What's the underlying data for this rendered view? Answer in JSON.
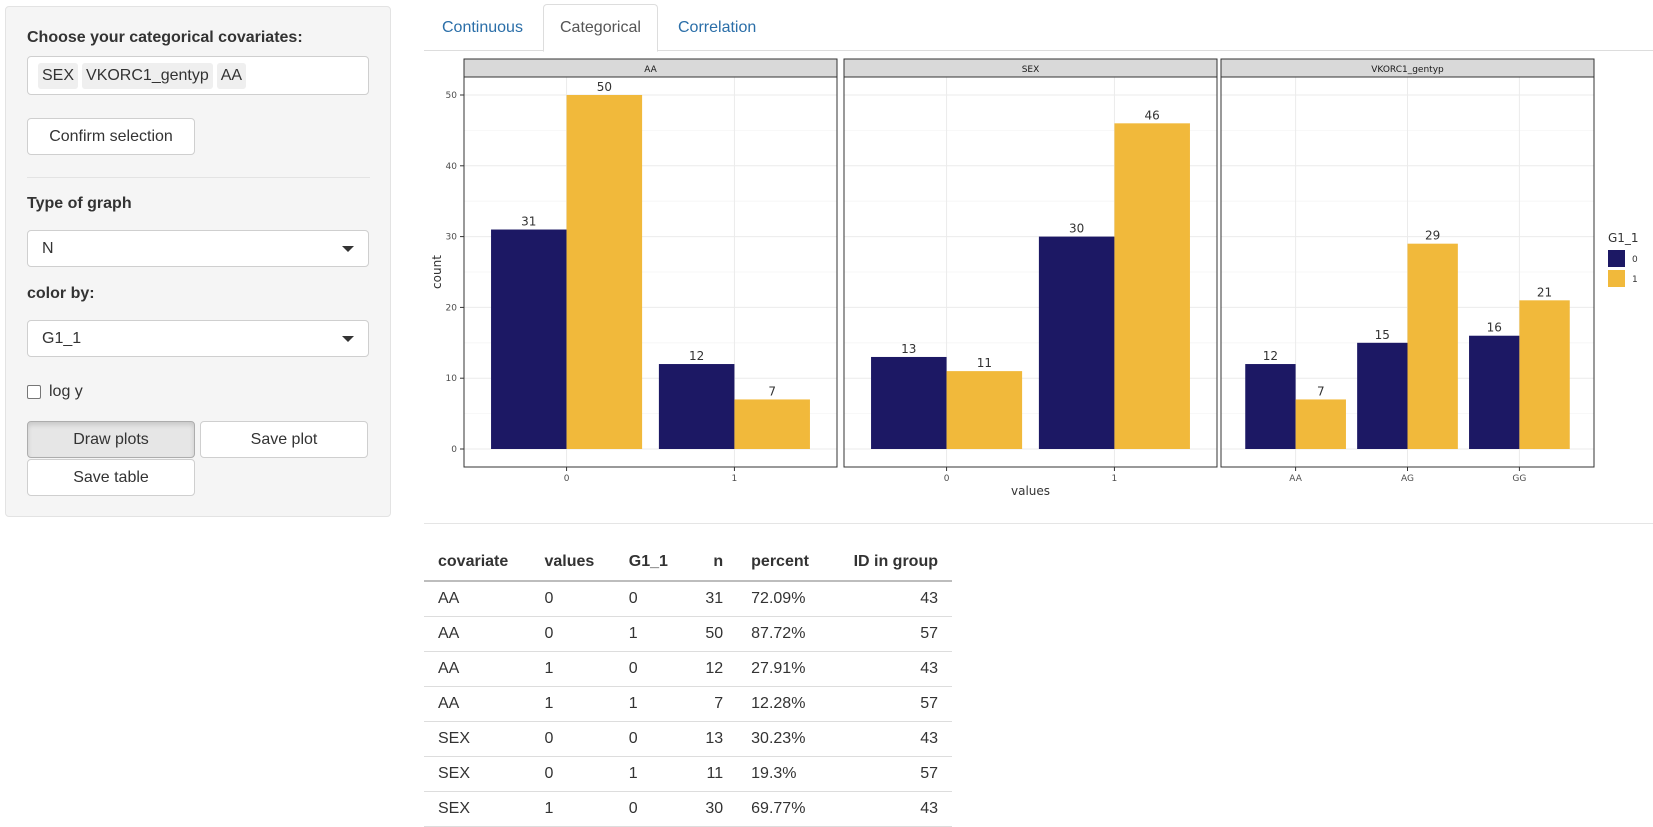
{
  "sidebar": {
    "covariates_label": "Choose your categorical covariates:",
    "selected": [
      "SEX",
      "VKORC1_gentyp",
      "AA"
    ],
    "confirm_button": "Confirm selection",
    "graph_type_label": "Type of graph",
    "graph_type_value": "N",
    "color_by_label": "color by:",
    "color_by_value": "G1_1",
    "log_y_label": "log y",
    "log_y_checked": false,
    "draw_button": "Draw plots",
    "save_plot_button": "Save plot",
    "save_table_button": "Save table"
  },
  "tabs": [
    {
      "label": "Continuous",
      "active": false
    },
    {
      "label": "Categorical",
      "active": true
    },
    {
      "label": "Correlation",
      "active": false
    }
  ],
  "chart_data": {
    "type": "bar",
    "xlabel": "values",
    "ylabel": "count",
    "ylim": [
      0,
      50
    ],
    "yticks": [
      0,
      10,
      20,
      30,
      40,
      50
    ],
    "legend": {
      "title": "G1_1",
      "position": "right"
    },
    "series_colors": {
      "0": "#1c1864",
      "1": "#f1b93b"
    },
    "series_names": [
      "0",
      "1"
    ],
    "facets": [
      {
        "title": "AA",
        "categories": [
          "0",
          "1"
        ],
        "series": [
          {
            "name": "0",
            "values": [
              31,
              12
            ]
          },
          {
            "name": "1",
            "values": [
              50,
              7
            ]
          }
        ]
      },
      {
        "title": "SEX",
        "categories": [
          "0",
          "1"
        ],
        "series": [
          {
            "name": "0",
            "values": [
              13,
              30
            ]
          },
          {
            "name": "1",
            "values": [
              11,
              46
            ]
          }
        ]
      },
      {
        "title": "VKORC1_gentyp",
        "categories": [
          "AA",
          "AG",
          "GG"
        ],
        "series": [
          {
            "name": "0",
            "values": [
              12,
              15,
              16
            ]
          },
          {
            "name": "1",
            "values": [
              7,
              29,
              21
            ]
          }
        ]
      }
    ]
  },
  "table": {
    "headers": [
      "covariate",
      "values",
      "G1_1",
      "n",
      "percent",
      "ID in group"
    ],
    "rows": [
      [
        "AA",
        "0",
        "0",
        "31",
        "72.09%",
        "43"
      ],
      [
        "AA",
        "0",
        "1",
        "50",
        "87.72%",
        "57"
      ],
      [
        "AA",
        "1",
        "0",
        "12",
        "27.91%",
        "43"
      ],
      [
        "AA",
        "1",
        "1",
        "7",
        "12.28%",
        "57"
      ],
      [
        "SEX",
        "0",
        "0",
        "13",
        "30.23%",
        "43"
      ],
      [
        "SEX",
        "0",
        "1",
        "11",
        "19.3%",
        "57"
      ],
      [
        "SEX",
        "1",
        "0",
        "30",
        "69.77%",
        "43"
      ]
    ]
  }
}
